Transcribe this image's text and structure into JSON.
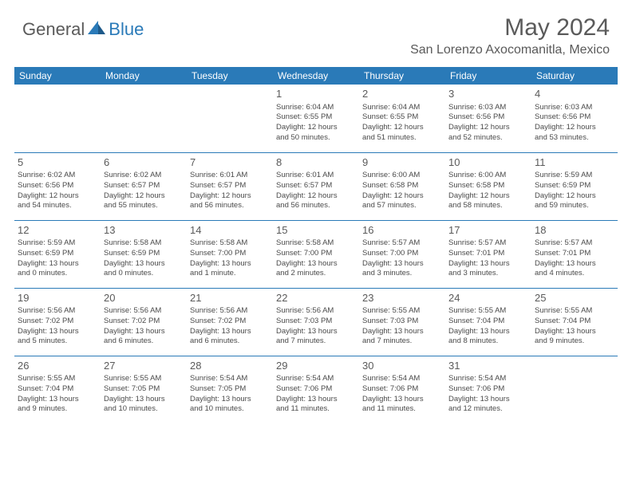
{
  "logo": {
    "part1": "General",
    "part2": "Blue"
  },
  "title": "May 2024",
  "location": "San Lorenzo Axocomanitla, Mexico",
  "colors": {
    "header_bg": "#2a7ab8",
    "header_text": "#ffffff",
    "text": "#4a4a4a",
    "rule": "#2a7ab8",
    "logo_gray": "#5a5a5a",
    "logo_blue": "#2a7ab8"
  },
  "dayHeaders": [
    "Sunday",
    "Monday",
    "Tuesday",
    "Wednesday",
    "Thursday",
    "Friday",
    "Saturday"
  ],
  "weeks": [
    [
      null,
      null,
      null,
      {
        "n": "1",
        "sr": "Sunrise: 6:04 AM",
        "ss": "Sunset: 6:55 PM",
        "d1": "Daylight: 12 hours",
        "d2": "and 50 minutes."
      },
      {
        "n": "2",
        "sr": "Sunrise: 6:04 AM",
        "ss": "Sunset: 6:55 PM",
        "d1": "Daylight: 12 hours",
        "d2": "and 51 minutes."
      },
      {
        "n": "3",
        "sr": "Sunrise: 6:03 AM",
        "ss": "Sunset: 6:56 PM",
        "d1": "Daylight: 12 hours",
        "d2": "and 52 minutes."
      },
      {
        "n": "4",
        "sr": "Sunrise: 6:03 AM",
        "ss": "Sunset: 6:56 PM",
        "d1": "Daylight: 12 hours",
        "d2": "and 53 minutes."
      }
    ],
    [
      {
        "n": "5",
        "sr": "Sunrise: 6:02 AM",
        "ss": "Sunset: 6:56 PM",
        "d1": "Daylight: 12 hours",
        "d2": "and 54 minutes."
      },
      {
        "n": "6",
        "sr": "Sunrise: 6:02 AM",
        "ss": "Sunset: 6:57 PM",
        "d1": "Daylight: 12 hours",
        "d2": "and 55 minutes."
      },
      {
        "n": "7",
        "sr": "Sunrise: 6:01 AM",
        "ss": "Sunset: 6:57 PM",
        "d1": "Daylight: 12 hours",
        "d2": "and 56 minutes."
      },
      {
        "n": "8",
        "sr": "Sunrise: 6:01 AM",
        "ss": "Sunset: 6:57 PM",
        "d1": "Daylight: 12 hours",
        "d2": "and 56 minutes."
      },
      {
        "n": "9",
        "sr": "Sunrise: 6:00 AM",
        "ss": "Sunset: 6:58 PM",
        "d1": "Daylight: 12 hours",
        "d2": "and 57 minutes."
      },
      {
        "n": "10",
        "sr": "Sunrise: 6:00 AM",
        "ss": "Sunset: 6:58 PM",
        "d1": "Daylight: 12 hours",
        "d2": "and 58 minutes."
      },
      {
        "n": "11",
        "sr": "Sunrise: 5:59 AM",
        "ss": "Sunset: 6:59 PM",
        "d1": "Daylight: 12 hours",
        "d2": "and 59 minutes."
      }
    ],
    [
      {
        "n": "12",
        "sr": "Sunrise: 5:59 AM",
        "ss": "Sunset: 6:59 PM",
        "d1": "Daylight: 13 hours",
        "d2": "and 0 minutes."
      },
      {
        "n": "13",
        "sr": "Sunrise: 5:58 AM",
        "ss": "Sunset: 6:59 PM",
        "d1": "Daylight: 13 hours",
        "d2": "and 0 minutes."
      },
      {
        "n": "14",
        "sr": "Sunrise: 5:58 AM",
        "ss": "Sunset: 7:00 PM",
        "d1": "Daylight: 13 hours",
        "d2": "and 1 minute."
      },
      {
        "n": "15",
        "sr": "Sunrise: 5:58 AM",
        "ss": "Sunset: 7:00 PM",
        "d1": "Daylight: 13 hours",
        "d2": "and 2 minutes."
      },
      {
        "n": "16",
        "sr": "Sunrise: 5:57 AM",
        "ss": "Sunset: 7:00 PM",
        "d1": "Daylight: 13 hours",
        "d2": "and 3 minutes."
      },
      {
        "n": "17",
        "sr": "Sunrise: 5:57 AM",
        "ss": "Sunset: 7:01 PM",
        "d1": "Daylight: 13 hours",
        "d2": "and 3 minutes."
      },
      {
        "n": "18",
        "sr": "Sunrise: 5:57 AM",
        "ss": "Sunset: 7:01 PM",
        "d1": "Daylight: 13 hours",
        "d2": "and 4 minutes."
      }
    ],
    [
      {
        "n": "19",
        "sr": "Sunrise: 5:56 AM",
        "ss": "Sunset: 7:02 PM",
        "d1": "Daylight: 13 hours",
        "d2": "and 5 minutes."
      },
      {
        "n": "20",
        "sr": "Sunrise: 5:56 AM",
        "ss": "Sunset: 7:02 PM",
        "d1": "Daylight: 13 hours",
        "d2": "and 6 minutes."
      },
      {
        "n": "21",
        "sr": "Sunrise: 5:56 AM",
        "ss": "Sunset: 7:02 PM",
        "d1": "Daylight: 13 hours",
        "d2": "and 6 minutes."
      },
      {
        "n": "22",
        "sr": "Sunrise: 5:56 AM",
        "ss": "Sunset: 7:03 PM",
        "d1": "Daylight: 13 hours",
        "d2": "and 7 minutes."
      },
      {
        "n": "23",
        "sr": "Sunrise: 5:55 AM",
        "ss": "Sunset: 7:03 PM",
        "d1": "Daylight: 13 hours",
        "d2": "and 7 minutes."
      },
      {
        "n": "24",
        "sr": "Sunrise: 5:55 AM",
        "ss": "Sunset: 7:04 PM",
        "d1": "Daylight: 13 hours",
        "d2": "and 8 minutes."
      },
      {
        "n": "25",
        "sr": "Sunrise: 5:55 AM",
        "ss": "Sunset: 7:04 PM",
        "d1": "Daylight: 13 hours",
        "d2": "and 9 minutes."
      }
    ],
    [
      {
        "n": "26",
        "sr": "Sunrise: 5:55 AM",
        "ss": "Sunset: 7:04 PM",
        "d1": "Daylight: 13 hours",
        "d2": "and 9 minutes."
      },
      {
        "n": "27",
        "sr": "Sunrise: 5:55 AM",
        "ss": "Sunset: 7:05 PM",
        "d1": "Daylight: 13 hours",
        "d2": "and 10 minutes."
      },
      {
        "n": "28",
        "sr": "Sunrise: 5:54 AM",
        "ss": "Sunset: 7:05 PM",
        "d1": "Daylight: 13 hours",
        "d2": "and 10 minutes."
      },
      {
        "n": "29",
        "sr": "Sunrise: 5:54 AM",
        "ss": "Sunset: 7:06 PM",
        "d1": "Daylight: 13 hours",
        "d2": "and 11 minutes."
      },
      {
        "n": "30",
        "sr": "Sunrise: 5:54 AM",
        "ss": "Sunset: 7:06 PM",
        "d1": "Daylight: 13 hours",
        "d2": "and 11 minutes."
      },
      {
        "n": "31",
        "sr": "Sunrise: 5:54 AM",
        "ss": "Sunset: 7:06 PM",
        "d1": "Daylight: 13 hours",
        "d2": "and 12 minutes."
      },
      null
    ]
  ]
}
